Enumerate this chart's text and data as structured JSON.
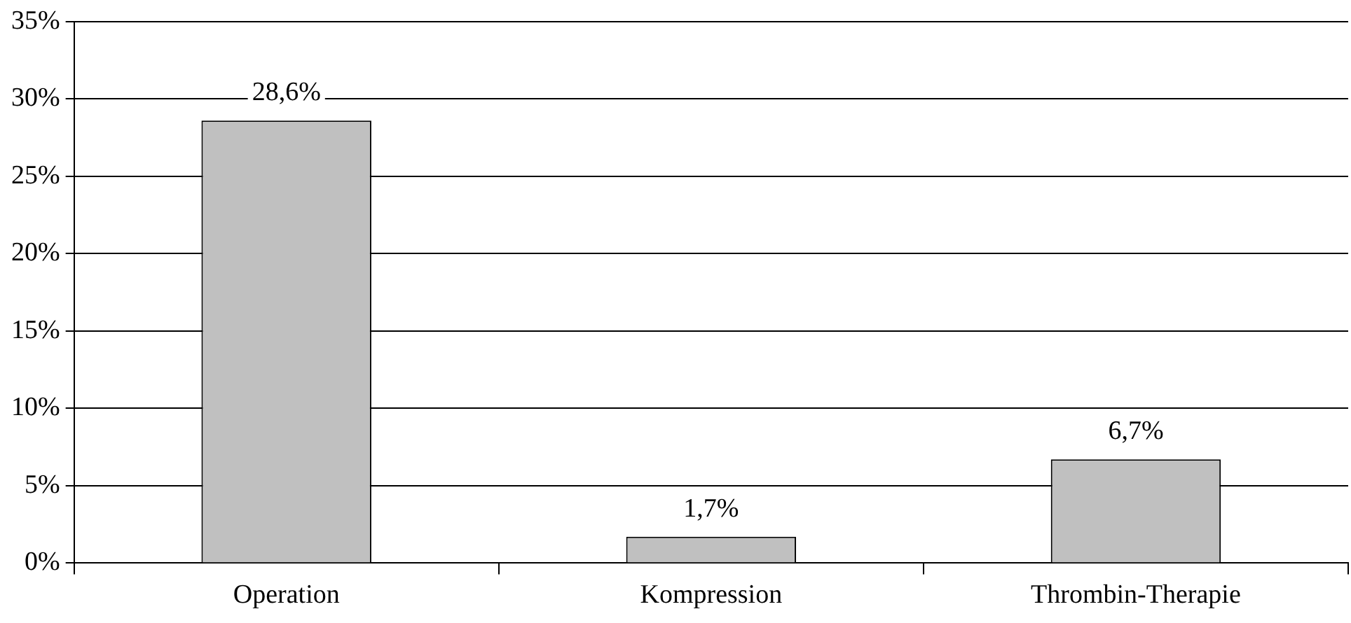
{
  "chart_data": {
    "type": "bar",
    "categories": [
      "Operation",
      "Kompression",
      "Thrombin-Therapie"
    ],
    "values": [
      28.6,
      1.7,
      6.7
    ],
    "color": "#c0c0c0",
    "value_labels": [
      "28,6%",
      "1,7%",
      "6,7%"
    ],
    "ylim": [
      0,
      35
    ],
    "yticks": [
      {
        "value": 0,
        "label": "0%"
      },
      {
        "value": 5,
        "label": "5%"
      },
      {
        "value": 10,
        "label": "10%"
      },
      {
        "value": 15,
        "label": "15%"
      },
      {
        "value": 20,
        "label": "20%"
      },
      {
        "value": 25,
        "label": "25%"
      },
      {
        "value": 30,
        "label": "30%"
      },
      {
        "value": 35,
        "label": "35%"
      }
    ],
    "grid": "y"
  }
}
